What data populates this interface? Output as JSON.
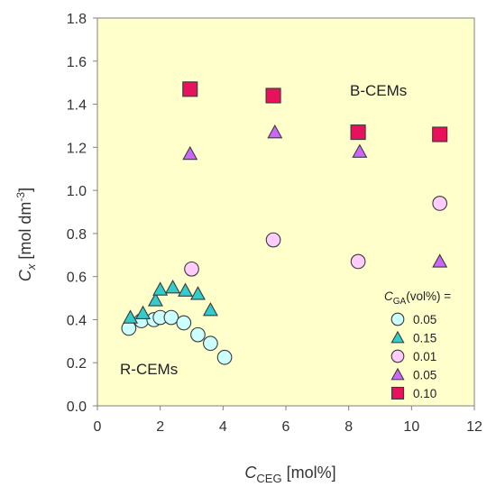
{
  "chart_data": {
    "type": "scatter",
    "xlabel": {
      "main": "C",
      "sub": "CEG",
      "rest": " [mol%]"
    },
    "ylabel": {
      "main": "C",
      "sub": "x",
      "rest": " [mol dm",
      "sup": "-3",
      "end": "]"
    },
    "xlim": [
      0,
      12
    ],
    "ylim": [
      0.0,
      1.8
    ],
    "xticks": [
      0,
      2,
      4,
      6,
      8,
      10,
      12
    ],
    "yticks": [
      "0.0",
      "0.2",
      "0.4",
      "0.6",
      "0.8",
      "1.0",
      "1.2",
      "1.4",
      "1.6",
      "1.8"
    ],
    "grid": false,
    "plot_background": "#FFFFCC",
    "legend_position": "bottom-right",
    "legend_title": {
      "main": "C",
      "sub": "GA",
      "rest": "(vol%) ="
    },
    "annotations": [
      "B-CEMs",
      "R-CEMs"
    ],
    "series": [
      {
        "name": "0.05",
        "marker": "circle",
        "color": "#CCFFFF",
        "x": [
          1.0,
          1.4,
          1.8,
          2.0,
          2.35,
          2.75,
          3.2,
          3.6,
          4.05
        ],
        "y": [
          0.36,
          0.395,
          0.4,
          0.41,
          0.41,
          0.385,
          0.33,
          0.29,
          0.225
        ]
      },
      {
        "name": "0.15",
        "marker": "triangle",
        "color": "#33CCCC",
        "x": [
          1.05,
          1.45,
          1.85,
          2.0,
          2.4,
          2.8,
          3.2,
          3.6
        ],
        "y": [
          0.41,
          0.43,
          0.49,
          0.54,
          0.55,
          0.535,
          0.52,
          0.445
        ]
      },
      {
        "name": "0.01",
        "marker": "circle",
        "color": "#FFCCFF",
        "x": [
          3.0,
          5.6,
          8.3,
          10.9
        ],
        "y": [
          0.635,
          0.77,
          0.67,
          0.94
        ]
      },
      {
        "name": "0.05",
        "marker": "triangle",
        "color": "#CC66FF",
        "x": [
          2.95,
          5.65,
          8.35,
          10.9
        ],
        "y": [
          1.17,
          1.27,
          1.18,
          0.67
        ]
      },
      {
        "name": "0.10",
        "marker": "square",
        "color": "#E8115B",
        "x": [
          2.95,
          5.6,
          8.3,
          10.9
        ],
        "y": [
          1.47,
          1.44,
          1.27,
          1.26
        ]
      }
    ]
  }
}
